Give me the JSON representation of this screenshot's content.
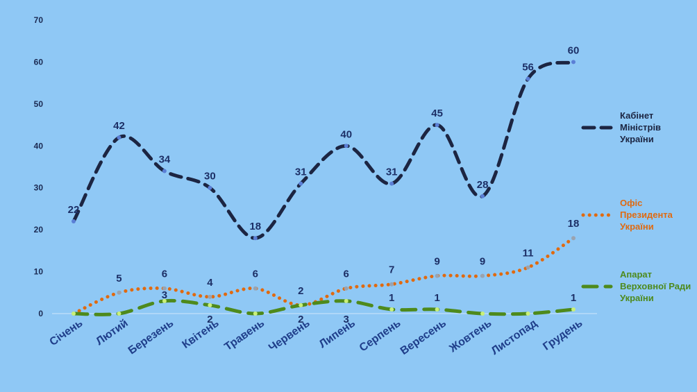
{
  "chart_data": {
    "type": "line",
    "categories": [
      "Січень",
      "Лютий",
      "Березень",
      "Квітень",
      "Травень",
      "Червень",
      "Липень",
      "Серпень",
      "Вересень",
      "Жовтень",
      "Листопад",
      "Грудень"
    ],
    "ylim": [
      0,
      70
    ],
    "yticks": [
      0,
      10,
      20,
      30,
      40,
      50,
      60,
      70
    ],
    "grid": false,
    "legend_position": "right",
    "series": [
      {
        "name": "Кабінет Міністрів України",
        "legend_lines": [
          "Кабінет",
          "Міністрів",
          "України"
        ],
        "values": [
          22,
          42,
          34,
          30,
          18,
          31,
          40,
          31,
          45,
          28,
          56,
          60
        ],
        "color": "#1c2542",
        "label_color": "#1c2f66",
        "marker_color": "#5b7fd6",
        "dash": "16,10",
        "width": 5
      },
      {
        "name": "Офіс Президента України",
        "legend_lines": [
          "Офіс",
          "Президента",
          "України"
        ],
        "values": [
          0,
          5,
          6,
          4,
          6,
          2,
          6,
          7,
          9,
          9,
          11,
          18
        ],
        "color": "#e06a10",
        "label_color": "#1c2f66",
        "marker_color": "#9aa3b0",
        "dash": "0.1,9",
        "width": 5
      },
      {
        "name": "Апарат Верховної Ради України",
        "legend_lines": [
          "Апарат",
          "Верховної Ради",
          "України"
        ],
        "values": [
          0,
          0,
          3,
          2,
          0,
          2,
          3,
          1,
          1,
          0,
          0,
          1
        ],
        "color": "#4e8a1c",
        "label_color": "#1c2f66",
        "marker_color": "#c9f07a",
        "dash": "20,12",
        "width": 5
      }
    ]
  }
}
